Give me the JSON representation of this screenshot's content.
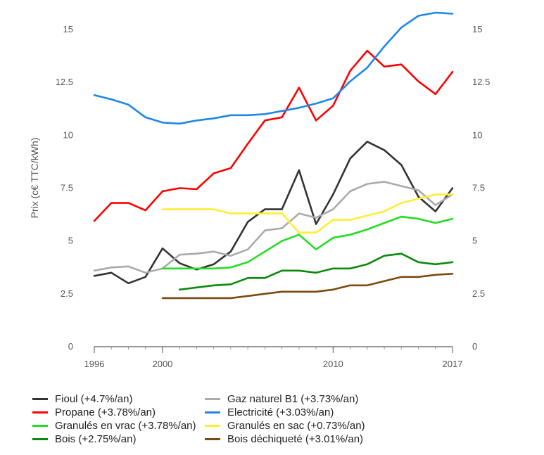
{
  "chart_data": {
    "type": "line",
    "title": "",
    "xlabel": "",
    "ylabel": "Prix (c€ TTC/kWh)",
    "xlim": [
      1996,
      2017
    ],
    "ylim": [
      0,
      16
    ],
    "x_ticks": [
      1996,
      2000,
      2010,
      2017
    ],
    "y_ticks": [
      0,
      2.5,
      5,
      7.5,
      10,
      12.5,
      15
    ],
    "y_tick_labels": [
      "0",
      "2.5",
      "5",
      "7.5",
      "10",
      "12.5",
      "15"
    ],
    "secondary_y_axis": true,
    "grid": false,
    "legend_position": "bottom",
    "x": [
      1996,
      1997,
      1998,
      1999,
      2000,
      2001,
      2002,
      2003,
      2004,
      2005,
      2006,
      2007,
      2008,
      2009,
      2010,
      2011,
      2012,
      2013,
      2014,
      2015,
      2016,
      2017
    ],
    "series": [
      {
        "name": "Fioul (+4.7%/an)",
        "color": "#333333",
        "values": [
          3.35,
          3.5,
          3.0,
          3.3,
          4.65,
          3.95,
          3.65,
          3.9,
          4.5,
          5.9,
          6.5,
          6.5,
          8.35,
          5.8,
          7.2,
          8.9,
          9.7,
          9.3,
          8.6,
          7.1,
          6.4,
          7.5
        ]
      },
      {
        "name": "Gaz naturel B1 (+3.73%/an)",
        "color": "#aaaaaa",
        "values": [
          3.6,
          3.75,
          3.8,
          3.5,
          3.7,
          4.35,
          4.4,
          4.5,
          4.3,
          4.6,
          5.5,
          5.6,
          6.3,
          6.1,
          6.5,
          7.35,
          7.7,
          7.8,
          7.6,
          7.4,
          6.7,
          7.2
        ]
      },
      {
        "name": "Propane (+3.78%/an)",
        "color": "#ff0000",
        "values": [
          5.95,
          6.8,
          6.8,
          6.45,
          7.35,
          7.5,
          7.45,
          8.2,
          8.45,
          9.6,
          10.7,
          10.85,
          12.25,
          10.7,
          11.4,
          13.05,
          14.0,
          13.25,
          13.35,
          12.55,
          11.95,
          13.0
        ]
      },
      {
        "name": "Electricité (+3.03%/an)",
        "color": "#1e88e5",
        "values": [
          11.9,
          11.7,
          11.45,
          10.85,
          10.6,
          10.55,
          10.7,
          10.8,
          10.95,
          10.95,
          11.0,
          11.15,
          11.3,
          11.5,
          11.75,
          12.55,
          13.2,
          14.2,
          15.1,
          15.65,
          15.8,
          15.75
        ]
      },
      {
        "name": "Granulés en vrac (+3.78%/an)",
        "color": "#22dd22",
        "values": [
          null,
          null,
          null,
          null,
          3.7,
          3.7,
          3.7,
          3.7,
          3.75,
          4.0,
          4.5,
          5.0,
          5.3,
          4.6,
          5.15,
          5.3,
          5.55,
          5.85,
          6.15,
          6.05,
          5.85,
          6.05
        ]
      },
      {
        "name": "Granulés en sac (+0.73%/an)",
        "color": "#ffee33",
        "values": [
          null,
          null,
          null,
          null,
          6.5,
          6.5,
          6.5,
          6.5,
          6.3,
          6.3,
          6.3,
          6.3,
          5.4,
          5.4,
          6.0,
          6.0,
          6.2,
          6.4,
          6.8,
          7.0,
          7.2,
          7.2
        ]
      },
      {
        "name": "Bois (+2.75%/an)",
        "color": "#0b8a0b",
        "values": [
          null,
          null,
          null,
          null,
          null,
          2.7,
          2.8,
          2.9,
          2.95,
          3.25,
          3.25,
          3.6,
          3.6,
          3.5,
          3.7,
          3.7,
          3.9,
          4.3,
          4.4,
          4.0,
          3.9,
          4.0
        ]
      },
      {
        "name": "Bois déchiqueté (+3.01%/an)",
        "color": "#7a4a0e",
        "values": [
          null,
          null,
          null,
          null,
          2.3,
          2.3,
          2.3,
          2.3,
          2.3,
          2.4,
          2.5,
          2.6,
          2.6,
          2.6,
          2.7,
          2.9,
          2.9,
          3.1,
          3.3,
          3.3,
          3.4,
          3.45
        ]
      }
    ]
  }
}
